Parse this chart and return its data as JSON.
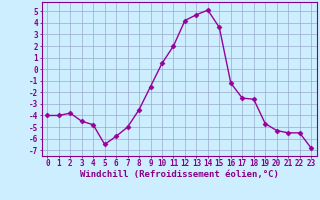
{
  "x": [
    0,
    1,
    2,
    3,
    4,
    5,
    6,
    7,
    8,
    9,
    10,
    11,
    12,
    13,
    14,
    15,
    16,
    17,
    18,
    19,
    20,
    21,
    22,
    23
  ],
  "y": [
    -4.0,
    -4.0,
    -3.8,
    -4.5,
    -4.8,
    -6.5,
    -5.8,
    -5.0,
    -3.5,
    -1.5,
    0.5,
    2.0,
    4.2,
    4.7,
    5.1,
    3.6,
    -1.2,
    -2.5,
    -2.6,
    -4.7,
    -5.3,
    -5.5,
    -5.5,
    -6.8
  ],
  "line_color": "#990099",
  "marker": "D",
  "markersize": 2.5,
  "linewidth": 1.0,
  "xlim": [
    -0.5,
    23.5
  ],
  "ylim": [
    -7.5,
    5.8
  ],
  "yticks": [
    -7,
    -6,
    -5,
    -4,
    -3,
    -2,
    -1,
    0,
    1,
    2,
    3,
    4,
    5
  ],
  "xticks": [
    0,
    1,
    2,
    3,
    4,
    5,
    6,
    7,
    8,
    9,
    10,
    11,
    12,
    13,
    14,
    15,
    16,
    17,
    18,
    19,
    20,
    21,
    22,
    23
  ],
  "xlabel": "Windchill (Refroidissement éolien,°C)",
  "xlabel_fontsize": 6.5,
  "tick_fontsize": 5.5,
  "bg_color": "#cceeff",
  "grid_color": "#aabbcc",
  "line_grid_color": "#99aacc",
  "axis_color": "#880088",
  "spine_color": "#880088"
}
